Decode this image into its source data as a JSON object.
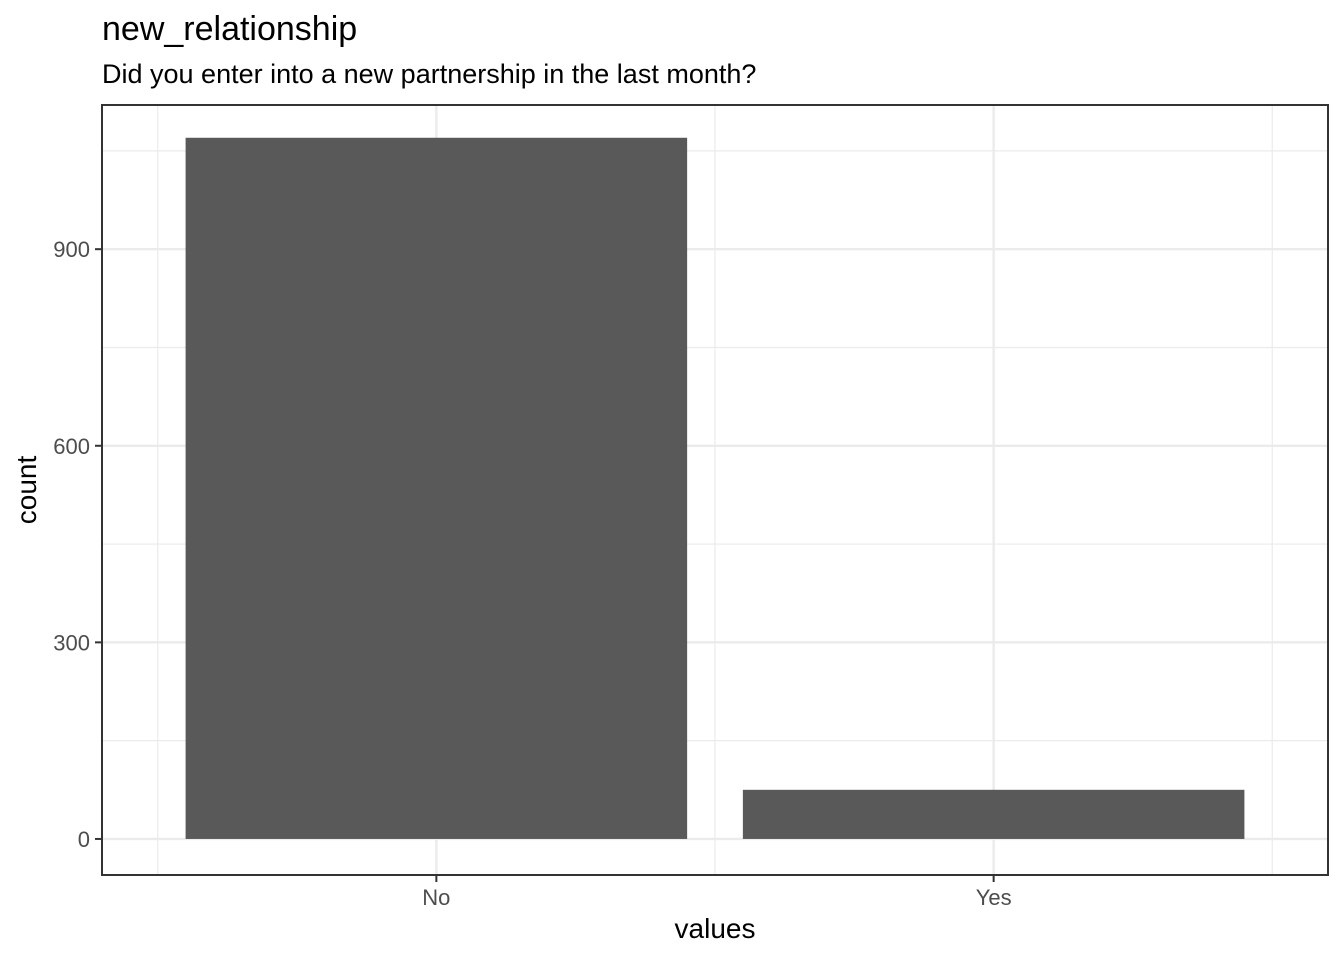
{
  "chart_data": {
    "type": "bar",
    "title": "new_relationship",
    "subtitle": "Did you enter into a new partnership in the last month?",
    "xlabel": "values",
    "ylabel": "count",
    "categories": [
      "No",
      "Yes"
    ],
    "values": [
      1070,
      75
    ],
    "ylim": [
      -55,
      1120
    ],
    "yticks": [
      0,
      300,
      600,
      900
    ],
    "grid": true,
    "bar_color": "#595959",
    "grid_color": "#ebebeb",
    "panel_border_color": "#333333"
  }
}
